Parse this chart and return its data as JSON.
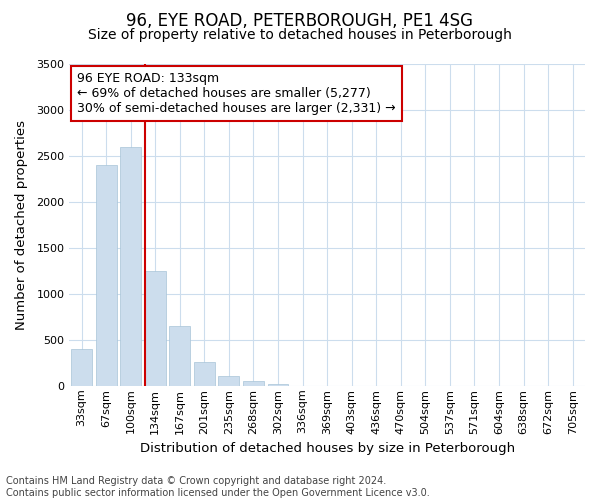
{
  "title": "96, EYE ROAD, PETERBOROUGH, PE1 4SG",
  "subtitle": "Size of property relative to detached houses in Peterborough",
  "xlabel": "Distribution of detached houses by size in Peterborough",
  "ylabel": "Number of detached properties",
  "bar_labels": [
    "33sqm",
    "67sqm",
    "100sqm",
    "134sqm",
    "167sqm",
    "201sqm",
    "235sqm",
    "268sqm",
    "302sqm",
    "336sqm",
    "369sqm",
    "403sqm",
    "436sqm",
    "470sqm",
    "504sqm",
    "537sqm",
    "571sqm",
    "604sqm",
    "638sqm",
    "672sqm",
    "705sqm"
  ],
  "bar_values": [
    400,
    2400,
    2600,
    1250,
    650,
    260,
    105,
    55,
    25,
    0,
    0,
    0,
    0,
    0,
    0,
    0,
    0,
    0,
    0,
    0,
    0
  ],
  "bar_color": "#ccdded",
  "bar_edgecolor": "#a8c4d8",
  "marker_color": "#cc0000",
  "ylim": [
    0,
    3500
  ],
  "yticks": [
    0,
    500,
    1000,
    1500,
    2000,
    2500,
    3000,
    3500
  ],
  "annotation_title": "96 EYE ROAD: 133sqm",
  "annotation_line1": "← 69% of detached houses are smaller (5,277)",
  "annotation_line2": "30% of semi-detached houses are larger (2,331) →",
  "annotation_box_color": "#ffffff",
  "annotation_box_edgecolor": "#cc0000",
  "footer_line1": "Contains HM Land Registry data © Crown copyright and database right 2024.",
  "footer_line2": "Contains public sector information licensed under the Open Government Licence v3.0.",
  "bg_color": "#ffffff",
  "grid_color": "#ccdded",
  "title_fontsize": 12,
  "subtitle_fontsize": 10,
  "axis_label_fontsize": 9.5,
  "tick_fontsize": 8,
  "annotation_fontsize": 9,
  "footer_fontsize": 7
}
